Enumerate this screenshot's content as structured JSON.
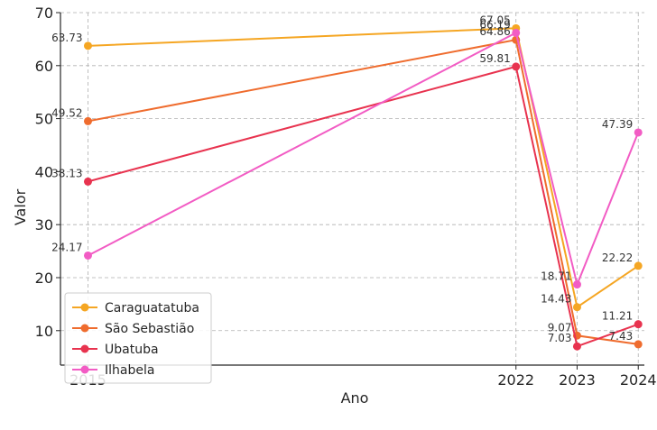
{
  "chart_data": {
    "type": "line",
    "title": "",
    "xlabel": "Ano",
    "ylabel": "Valor",
    "x": [
      2015,
      2022,
      2023,
      2024
    ],
    "xlim": [
      2014.55,
      2024.1
    ],
    "ylim": [
      3.5,
      70
    ],
    "xticks": [
      "2015",
      "2022",
      "2023",
      "2024"
    ],
    "yticks": [
      "10",
      "20",
      "30",
      "40",
      "50",
      "60",
      "70"
    ],
    "grid": true,
    "legend_position": "lower-left",
    "series": [
      {
        "name": "Caraguatatuba",
        "color": "#f5a623",
        "values": [
          63.73,
          67.05,
          14.43,
          22.22
        ],
        "labels": [
          "63.73",
          "67.05",
          "14.43",
          "22.22"
        ]
      },
      {
        "name": "São Sebastião",
        "color": "#ef6c2e",
        "values": [
          49.52,
          64.86,
          9.07,
          7.43
        ],
        "labels": [
          "49.52",
          "64.86",
          "9.07",
          "7.43"
        ]
      },
      {
        "name": "Ubatuba",
        "color": "#e8334f",
        "values": [
          38.13,
          59.81,
          7.03,
          11.21
        ],
        "labels": [
          "38.13",
          "59.81",
          "7.03",
          "11.21"
        ]
      },
      {
        "name": "Ilhabela",
        "color": "#f25cc4",
        "values": [
          24.17,
          66.19,
          18.71,
          47.39
        ],
        "labels": [
          "24.17",
          "66.19",
          "18.71",
          "47.39"
        ]
      }
    ]
  }
}
